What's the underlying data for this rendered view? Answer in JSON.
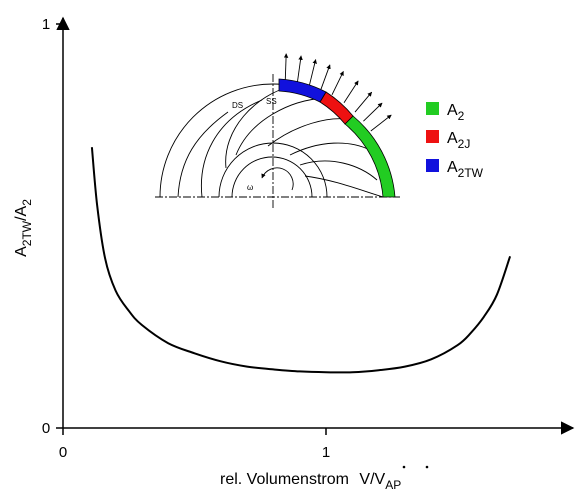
{
  "chart_data": {
    "type": "line",
    "xlabel": "rel. Volumenstrom",
    "xlabel_math": {
      "V": "V",
      "slash": "/",
      "V2": "V",
      "sub": "AP"
    },
    "ylabel": {
      "A1": "A",
      "sub1": "2TW",
      "slash": "/",
      "A2": "A",
      "sub2": "2"
    },
    "xlim": [
      0,
      1.9
    ],
    "ylim": [
      0,
      1
    ],
    "x_ticks": [
      {
        "value": 0,
        "label": "0"
      },
      {
        "value": 1,
        "label": "1"
      }
    ],
    "y_ticks": [
      {
        "value": 0,
        "label": "0"
      },
      {
        "value": 1,
        "label": "1"
      }
    ],
    "series": [
      {
        "x": [
          0.11,
          0.13,
          0.16,
          0.2,
          0.25,
          0.3,
          0.4,
          0.5,
          0.6,
          0.7,
          0.8,
          0.9,
          1.0,
          1.1,
          1.2,
          1.3,
          1.4,
          1.5,
          1.55,
          1.6,
          1.65,
          1.7
        ],
        "y": [
          0.695,
          0.55,
          0.42,
          0.34,
          0.29,
          0.255,
          0.21,
          0.185,
          0.165,
          0.152,
          0.145,
          0.14,
          0.138,
          0.138,
          0.143,
          0.152,
          0.17,
          0.205,
          0.235,
          0.275,
          0.33,
          0.425
        ]
      }
    ],
    "legend": {
      "position": "top-right",
      "entries": [
        {
          "main": "A",
          "sub": "2",
          "color": "#22cc22"
        },
        {
          "main": "A",
          "sub": "2J",
          "color": "#ee1111"
        },
        {
          "main": "A",
          "sub": "2TW",
          "color": "#1111dd"
        }
      ]
    },
    "inset_labels": {
      "ds": "DS",
      "ss": "SS",
      "omega": "ω"
    }
  }
}
